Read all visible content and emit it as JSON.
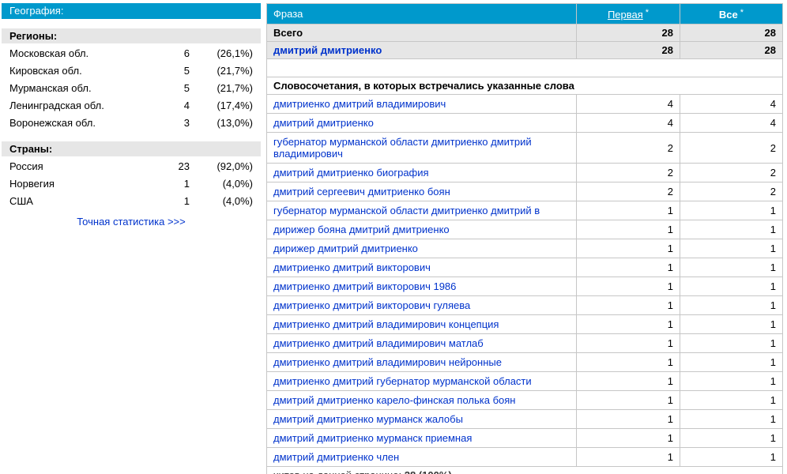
{
  "colors": {
    "accent": "#0099cc",
    "row_gray": "#e6e6e6",
    "link_blue": "#0033cc",
    "border_gray": "#c6c6c6"
  },
  "geography": {
    "title": "География:",
    "sections": [
      {
        "title": "Регионы:",
        "items": [
          {
            "label": "Московская обл.",
            "count": "6",
            "percent": "(26,1%)"
          },
          {
            "label": "Кировская обл.",
            "count": "5",
            "percent": "(21,7%)"
          },
          {
            "label": "Мурманская обл.",
            "count": "5",
            "percent": "(21,7%)"
          },
          {
            "label": "Ленинградская обл.",
            "count": "4",
            "percent": "(17,4%)"
          },
          {
            "label": "Воронежская обл.",
            "count": "3",
            "percent": "(13,0%)"
          }
        ]
      },
      {
        "title": "Страны:",
        "items": [
          {
            "label": "Россия",
            "count": "23",
            "percent": "(92,0%)"
          },
          {
            "label": "Норвегия",
            "count": "1",
            "percent": "(4,0%)"
          },
          {
            "label": "США",
            "count": "1",
            "percent": "(4,0%)"
          }
        ]
      }
    ],
    "footer_link": "Точная статистика >>>"
  },
  "table": {
    "headers": {
      "phrase": "Фраза",
      "first": "Первая",
      "all": "Все",
      "asterisk": "*"
    },
    "summary_rows": [
      {
        "phrase": "Всего",
        "first": "28",
        "all": "28",
        "link": false
      },
      {
        "phrase": "дмитрий дмитриенко",
        "first": "28",
        "all": "28",
        "link": true
      }
    ],
    "section_header": "Словосочетания, в которых встречались указанные слова",
    "rows": [
      {
        "phrase": "дмитриенко дмитрий владимирович",
        "first": "4",
        "all": "4"
      },
      {
        "phrase": "дмитрий дмитриенко",
        "first": "4",
        "all": "4"
      },
      {
        "phrase": "губернатор мурманской области дмитриенко дмитрий владимирович",
        "first": "2",
        "all": "2"
      },
      {
        "phrase": "дмитрий дмитриенко биография",
        "first": "2",
        "all": "2"
      },
      {
        "phrase": "дмитрий сергеевич дмитриенко боян",
        "first": "2",
        "all": "2"
      },
      {
        "phrase": "губернатор мурманской области дмитриенко дмитрий в",
        "first": "1",
        "all": "1"
      },
      {
        "phrase": "дирижер бояна дмитрий дмитриенко",
        "first": "1",
        "all": "1"
      },
      {
        "phrase": "дирижер дмитрий дмитриенко",
        "first": "1",
        "all": "1"
      },
      {
        "phrase": "дмитриенко дмитрий викторович",
        "first": "1",
        "all": "1"
      },
      {
        "phrase": "дмитриенко дмитрий викторович 1986",
        "first": "1",
        "all": "1"
      },
      {
        "phrase": "дмитриенко дмитрий викторович гуляева",
        "first": "1",
        "all": "1"
      },
      {
        "phrase": "дмитриенко дмитрий владимирович концепция",
        "first": "1",
        "all": "1"
      },
      {
        "phrase": "дмитриенко дмитрий владимирович матлаб",
        "first": "1",
        "all": "1"
      },
      {
        "phrase": "дмитриенко дмитрий владимирович нейронные",
        "first": "1",
        "all": "1"
      },
      {
        "phrase": "дмитриенко дмитрий губернатор мурманской области",
        "first": "1",
        "all": "1"
      },
      {
        "phrase": "дмитрий дмитриенко карело-финская полька боян",
        "first": "1",
        "all": "1"
      },
      {
        "phrase": "дмитрий дмитриенко мурманск жалобы",
        "first": "1",
        "all": "1"
      },
      {
        "phrase": "дмитрий дмитриенко мурманск приемная",
        "first": "1",
        "all": "1"
      },
      {
        "phrase": "дмитрий дмитриенко член",
        "first": "1",
        "all": "1"
      }
    ],
    "footer": {
      "label": "хитов на данной странице:",
      "value": "28 (100%)"
    }
  }
}
